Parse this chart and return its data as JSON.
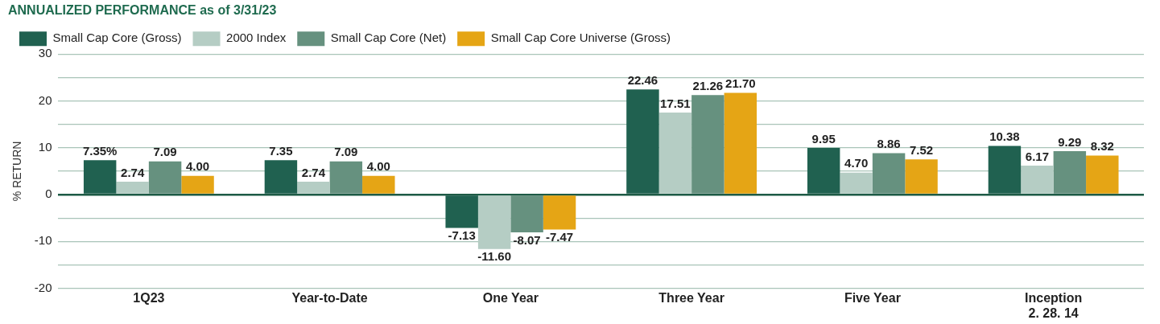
{
  "chart_data": {
    "type": "bar",
    "title": "ANNUALIZED PERFORMANCE as of 3/31/23",
    "ylabel": "% RETURN",
    "categories": [
      "1Q23",
      "Year-to-Date",
      "One Year",
      "Three Year",
      "Five Year",
      "Inception\n2. 28. 14"
    ],
    "series": [
      {
        "name": "Small Cap Core (Gross)",
        "color": "#206150",
        "values": [
          7.35,
          7.35,
          -7.13,
          22.46,
          9.95,
          10.38
        ],
        "value_labels": [
          "7.35%",
          "7.35",
          "-7.13",
          "22.46",
          "9.95",
          "10.38"
        ]
      },
      {
        "name": "2000 Index",
        "color": "#b5cdc4",
        "values": [
          2.74,
          2.74,
          -11.6,
          17.51,
          4.7,
          6.17
        ],
        "value_labels": [
          "2.74",
          "2.74",
          "-11.60",
          "17.51",
          "4.70",
          "6.17"
        ]
      },
      {
        "name": "Small Cap Core (Net)",
        "color": "#66917f",
        "values": [
          7.09,
          7.09,
          -8.07,
          21.26,
          8.86,
          9.29
        ],
        "value_labels": [
          "7.09",
          "7.09",
          "-8.07",
          "21.26",
          "8.86",
          "9.29"
        ]
      },
      {
        "name": "Small Cap Core Universe (Gross)",
        "color": "#e5a515",
        "values": [
          4.0,
          4.0,
          -7.47,
          21.7,
          7.52,
          8.32
        ],
        "value_labels": [
          "4.00",
          "4.00",
          "-7.47",
          "21.70",
          "7.52",
          "8.32"
        ]
      }
    ],
    "ylim": [
      -20,
      30
    ],
    "yticks": [
      -20,
      {
        "value": -15,
        "label": null
      },
      -10,
      {
        "value": -5,
        "label": null
      },
      0,
      {
        "value": 5,
        "label": null
      },
      10,
      {
        "value": 15,
        "label": null
      },
      20,
      {
        "value": 25,
        "label": null
      },
      30
    ],
    "grid": "y",
    "legend": "top left"
  }
}
